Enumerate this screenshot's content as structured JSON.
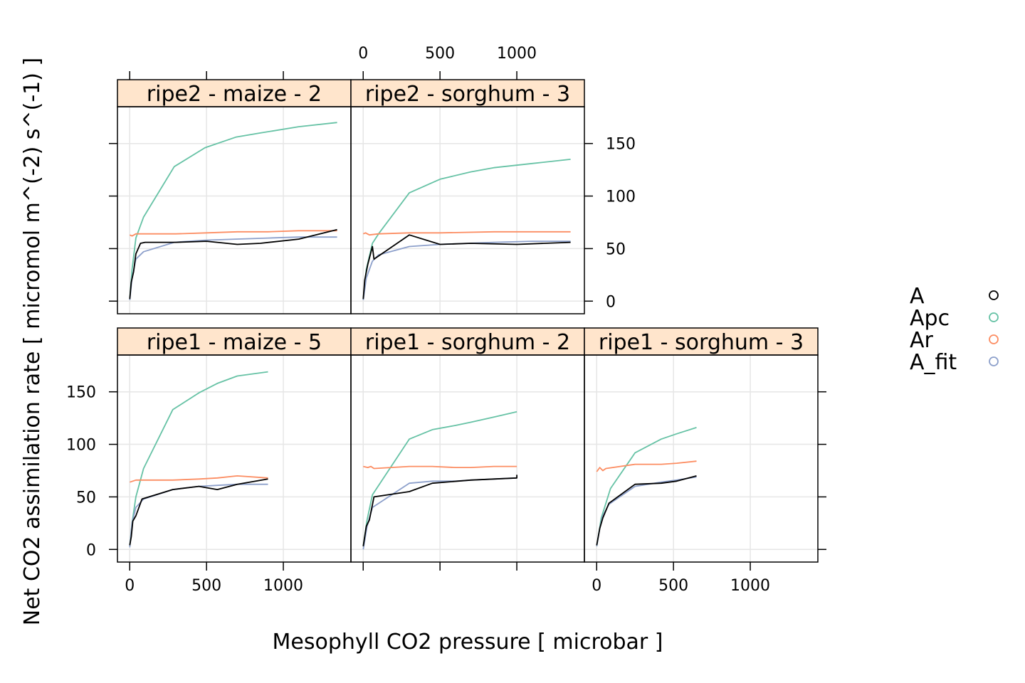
{
  "chart_data": {
    "type": "line",
    "xlabel": "Mesophyll CO2 pressure [ microbar ]",
    "ylabel": "Net CO2 assimilation rate [ micromol m^(-2) s^(-1) ]",
    "xlim": [
      -80,
      1440
    ],
    "ylim": [
      -12,
      185
    ],
    "x_ticks": [
      0,
      500,
      1000
    ],
    "y_ticks": [
      0,
      50,
      100,
      150
    ],
    "grid": true,
    "legend_position": "right",
    "legend": [
      {
        "name": "A",
        "color": "#000000"
      },
      {
        "name": "Apc",
        "color": "#66c2a5"
      },
      {
        "name": "Ar",
        "color": "#fc8d62"
      },
      {
        "name": "A_fit",
        "color": "#8da0cb"
      }
    ],
    "panels": [
      {
        "label": "ripe2 - maize - 2",
        "row": 0,
        "col": 0,
        "series": {
          "A": [
            [
              0,
              2
            ],
            [
              10,
              18
            ],
            [
              25,
              28
            ],
            [
              40,
              45
            ],
            [
              70,
              55
            ],
            [
              100,
              56
            ],
            [
              300,
              56
            ],
            [
              500,
              57
            ],
            [
              700,
              54
            ],
            [
              850,
              55
            ],
            [
              1100,
              59
            ],
            [
              1350,
              68
            ]
          ],
          "Apc": [
            [
              0,
              2
            ],
            [
              15,
              30
            ],
            [
              40,
              60
            ],
            [
              90,
              80
            ],
            [
              290,
              128
            ],
            [
              490,
              146
            ],
            [
              690,
              156
            ],
            [
              850,
              160
            ],
            [
              1100,
              166
            ],
            [
              1350,
              170
            ]
          ],
          "Ar": [
            [
              0,
              63
            ],
            [
              15,
              62
            ],
            [
              40,
              64
            ],
            [
              100,
              64
            ],
            [
              300,
              64
            ],
            [
              500,
              65
            ],
            [
              700,
              66
            ],
            [
              900,
              66
            ],
            [
              1100,
              67
            ],
            [
              1350,
              67
            ]
          ],
          "A_fit": [
            [
              0,
              1
            ],
            [
              15,
              22
            ],
            [
              40,
              40
            ],
            [
              90,
              47
            ],
            [
              290,
              56
            ],
            [
              490,
              58
            ],
            [
              690,
              59
            ],
            [
              900,
              60
            ],
            [
              1100,
              61
            ],
            [
              1350,
              61
            ]
          ]
        }
      },
      {
        "label": "ripe2 - sorghum - 3",
        "row": 0,
        "col": 1,
        "series": {
          "A": [
            [
              0,
              2
            ],
            [
              10,
              20
            ],
            [
              30,
              35
            ],
            [
              60,
              52
            ],
            [
              70,
              40
            ],
            [
              300,
              63
            ],
            [
              500,
              54
            ],
            [
              700,
              55
            ],
            [
              1000,
              54
            ],
            [
              1350,
              56
            ]
          ],
          "Apc": [
            [
              0,
              2
            ],
            [
              20,
              30
            ],
            [
              60,
              55
            ],
            [
              100,
              64
            ],
            [
              300,
              103
            ],
            [
              500,
              116
            ],
            [
              700,
              123
            ],
            [
              850,
              127
            ],
            [
              1100,
              131
            ],
            [
              1350,
              135
            ]
          ],
          "Ar": [
            [
              0,
              64
            ],
            [
              15,
              65
            ],
            [
              40,
              63
            ],
            [
              100,
              64
            ],
            [
              300,
              65
            ],
            [
              500,
              65
            ],
            [
              850,
              66
            ],
            [
              1100,
              66
            ],
            [
              1350,
              66
            ]
          ],
          "A_fit": [
            [
              0,
              1
            ],
            [
              20,
              22
            ],
            [
              60,
              38
            ],
            [
              100,
              44
            ],
            [
              300,
              52
            ],
            [
              500,
              54
            ],
            [
              850,
              56
            ],
            [
              1100,
              57
            ],
            [
              1350,
              57
            ]
          ]
        }
      },
      {
        "label": "ripe1 - maize - 5",
        "row": 1,
        "col": 0,
        "series": {
          "A": [
            [
              0,
              4
            ],
            [
              10,
              12
            ],
            [
              20,
              27
            ],
            [
              40,
              32
            ],
            [
              80,
              48
            ],
            [
              280,
              57
            ],
            [
              450,
              60
            ],
            [
              570,
              57
            ],
            [
              700,
              62
            ],
            [
              900,
              67
            ]
          ],
          "Apc": [
            [
              0,
              3
            ],
            [
              15,
              25
            ],
            [
              40,
              50
            ],
            [
              90,
              77
            ],
            [
              280,
              133
            ],
            [
              450,
              149
            ],
            [
              570,
              158
            ],
            [
              700,
              165
            ],
            [
              900,
              169
            ]
          ],
          "Ar": [
            [
              0,
              64
            ],
            [
              40,
              66
            ],
            [
              100,
              66
            ],
            [
              280,
              66
            ],
            [
              450,
              67
            ],
            [
              570,
              68
            ],
            [
              700,
              70
            ],
            [
              900,
              68
            ]
          ],
          "A_fit": [
            [
              0,
              2
            ],
            [
              15,
              25
            ],
            [
              40,
              40
            ],
            [
              90,
              48
            ],
            [
              280,
              57
            ],
            [
              450,
              60
            ],
            [
              570,
              61
            ],
            [
              700,
              62
            ],
            [
              900,
              62
            ]
          ]
        }
      },
      {
        "label": "ripe1 - sorghum - 2",
        "row": 1,
        "col": 1,
        "series": {
          "A": [
            [
              0,
              3
            ],
            [
              20,
              22
            ],
            [
              40,
              28
            ],
            [
              70,
              50
            ],
            [
              300,
              55
            ],
            [
              450,
              63
            ],
            [
              700,
              66
            ],
            [
              1000,
              68
            ],
            [
              1000,
              71
            ]
          ],
          "Apc": [
            [
              0,
              3
            ],
            [
              25,
              28
            ],
            [
              60,
              52
            ],
            [
              300,
              105
            ],
            [
              450,
              114
            ],
            [
              600,
              118
            ],
            [
              700,
              121
            ],
            [
              850,
              126
            ],
            [
              1000,
              131
            ]
          ],
          "Ar": [
            [
              0,
              79
            ],
            [
              30,
              78
            ],
            [
              50,
              79
            ],
            [
              70,
              77
            ],
            [
              300,
              79
            ],
            [
              450,
              79
            ],
            [
              600,
              78
            ],
            [
              700,
              78
            ],
            [
              850,
              79
            ],
            [
              1000,
              79
            ]
          ],
          "A_fit": [
            [
              0,
              0
            ],
            [
              25,
              22
            ],
            [
              60,
              40
            ],
            [
              300,
              63
            ],
            [
              450,
              65
            ],
            [
              600,
              65
            ],
            [
              700,
              66
            ],
            [
              850,
              67
            ],
            [
              1000,
              68
            ]
          ]
        }
      },
      {
        "label": "ripe1 - sorghum - 3",
        "row": 1,
        "col": 2,
        "series": {
          "A": [
            [
              0,
              4
            ],
            [
              20,
              20
            ],
            [
              40,
              30
            ],
            [
              80,
              44
            ],
            [
              250,
              62
            ],
            [
              420,
              63
            ],
            [
              520,
              65
            ],
            [
              650,
              70
            ]
          ],
          "Apc": [
            [
              0,
              3
            ],
            [
              30,
              30
            ],
            [
              90,
              58
            ],
            [
              250,
              92
            ],
            [
              420,
              105
            ],
            [
              520,
              110
            ],
            [
              650,
              116
            ]
          ],
          "Ar": [
            [
              0,
              74
            ],
            [
              20,
              78
            ],
            [
              40,
              75
            ],
            [
              60,
              77
            ],
            [
              250,
              81
            ],
            [
              420,
              81
            ],
            [
              520,
              82
            ],
            [
              650,
              84
            ]
          ],
          "A_fit": [
            [
              0,
              3
            ],
            [
              20,
              20
            ],
            [
              40,
              32
            ],
            [
              80,
              43
            ],
            [
              250,
              60
            ],
            [
              420,
              64
            ],
            [
              520,
              66
            ],
            [
              650,
              69
            ]
          ]
        }
      }
    ]
  }
}
